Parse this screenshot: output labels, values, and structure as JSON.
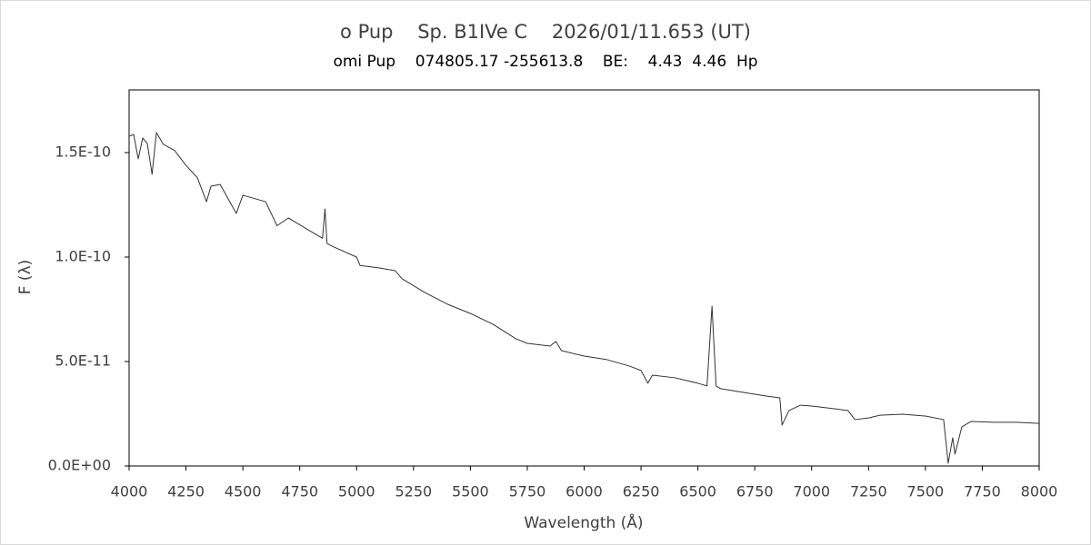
{
  "chart_data": {
    "type": "line",
    "title": "o Pup    Sp. B1IVe C    2026/01/11.653 (UT)",
    "subtitle": "omi Pup    074805.17 -255613.8    BE:    4.43  4.46  Hp",
    "x_label": "Wavelength (Å)",
    "y_label": "F (λ)",
    "xlim": [
      4000,
      8000
    ],
    "xticks": [
      4000,
      4250,
      4500,
      4750,
      5000,
      5250,
      5500,
      5750,
      6000,
      6250,
      6500,
      6750,
      7000,
      7250,
      7500,
      7750,
      8000
    ],
    "ylim": [
      0,
      1.8e-10
    ],
    "yticks": [
      {
        "value": 0,
        "label": "0.0E+00"
      },
      {
        "value": 5e-11,
        "label": "5.0E-11"
      },
      {
        "value": 1e-10,
        "label": "1.0E-10"
      },
      {
        "value": 1.5e-10,
        "label": "1.5E-10"
      }
    ],
    "series": [
      {
        "color": "#333333",
        "x": [
          4000,
          4020,
          4040,
          4060,
          4080,
          4101,
          4120,
          4150,
          4200,
          4250,
          4300,
          4340,
          4360,
          4400,
          4471,
          4500,
          4600,
          4650,
          4700,
          4800,
          4850,
          4861,
          4870,
          4900,
          5000,
          5015,
          5100,
          5169,
          5200,
          5300,
          5400,
          5500,
          5600,
          5700,
          5750,
          5850,
          5876,
          5900,
          6000,
          6100,
          6200,
          6250,
          6280,
          6300,
          6400,
          6500,
          6540,
          6562,
          6580,
          6600,
          6700,
          6800,
          6860,
          6870,
          6900,
          6950,
          7000,
          7100,
          7160,
          7190,
          7250,
          7300,
          7400,
          7500,
          7580,
          7600,
          7620,
          7630,
          7660,
          7700,
          7800,
          7900,
          8000
        ],
        "values": [
          1.578e-10,
          1.587e-10,
          1.47e-10,
          1.57e-10,
          1.543e-10,
          1.396e-10,
          1.596e-10,
          1.54e-10,
          1.51e-10,
          1.439e-10,
          1.38e-10,
          1.265e-10,
          1.339e-10,
          1.348e-10,
          1.209e-10,
          1.296e-10,
          1.265e-10,
          1.15e-10,
          1.187e-10,
          1.122e-10,
          1.09e-10,
          1.23e-10,
          1.065e-10,
          1.048e-10,
          1e-10,
          9.6e-11,
          9.48e-11,
          9.35e-11,
          8.96e-11,
          8.3e-11,
          7.74e-11,
          7.3e-11,
          6.78e-11,
          6.09e-11,
          5.87e-11,
          5.74e-11,
          5.96e-11,
          5.52e-11,
          5.26e-11,
          5.09e-11,
          4.78e-11,
          4.57e-11,
          3.96e-11,
          4.35e-11,
          4.22e-11,
          3.96e-11,
          3.83e-11,
          7.65e-11,
          3.83e-11,
          3.7e-11,
          3.52e-11,
          3.35e-11,
          3.26e-11,
          1.96e-11,
          2.65e-11,
          2.91e-11,
          2.87e-11,
          2.74e-11,
          2.65e-11,
          2.22e-11,
          2.3e-11,
          2.43e-11,
          2.48e-11,
          2.39e-11,
          2.22e-11,
          1.3e-12,
          1.35e-11,
          5.7e-12,
          1.87e-11,
          2.13e-11,
          2.09e-11,
          2.09e-11,
          2.04e-11
        ]
      }
    ]
  }
}
